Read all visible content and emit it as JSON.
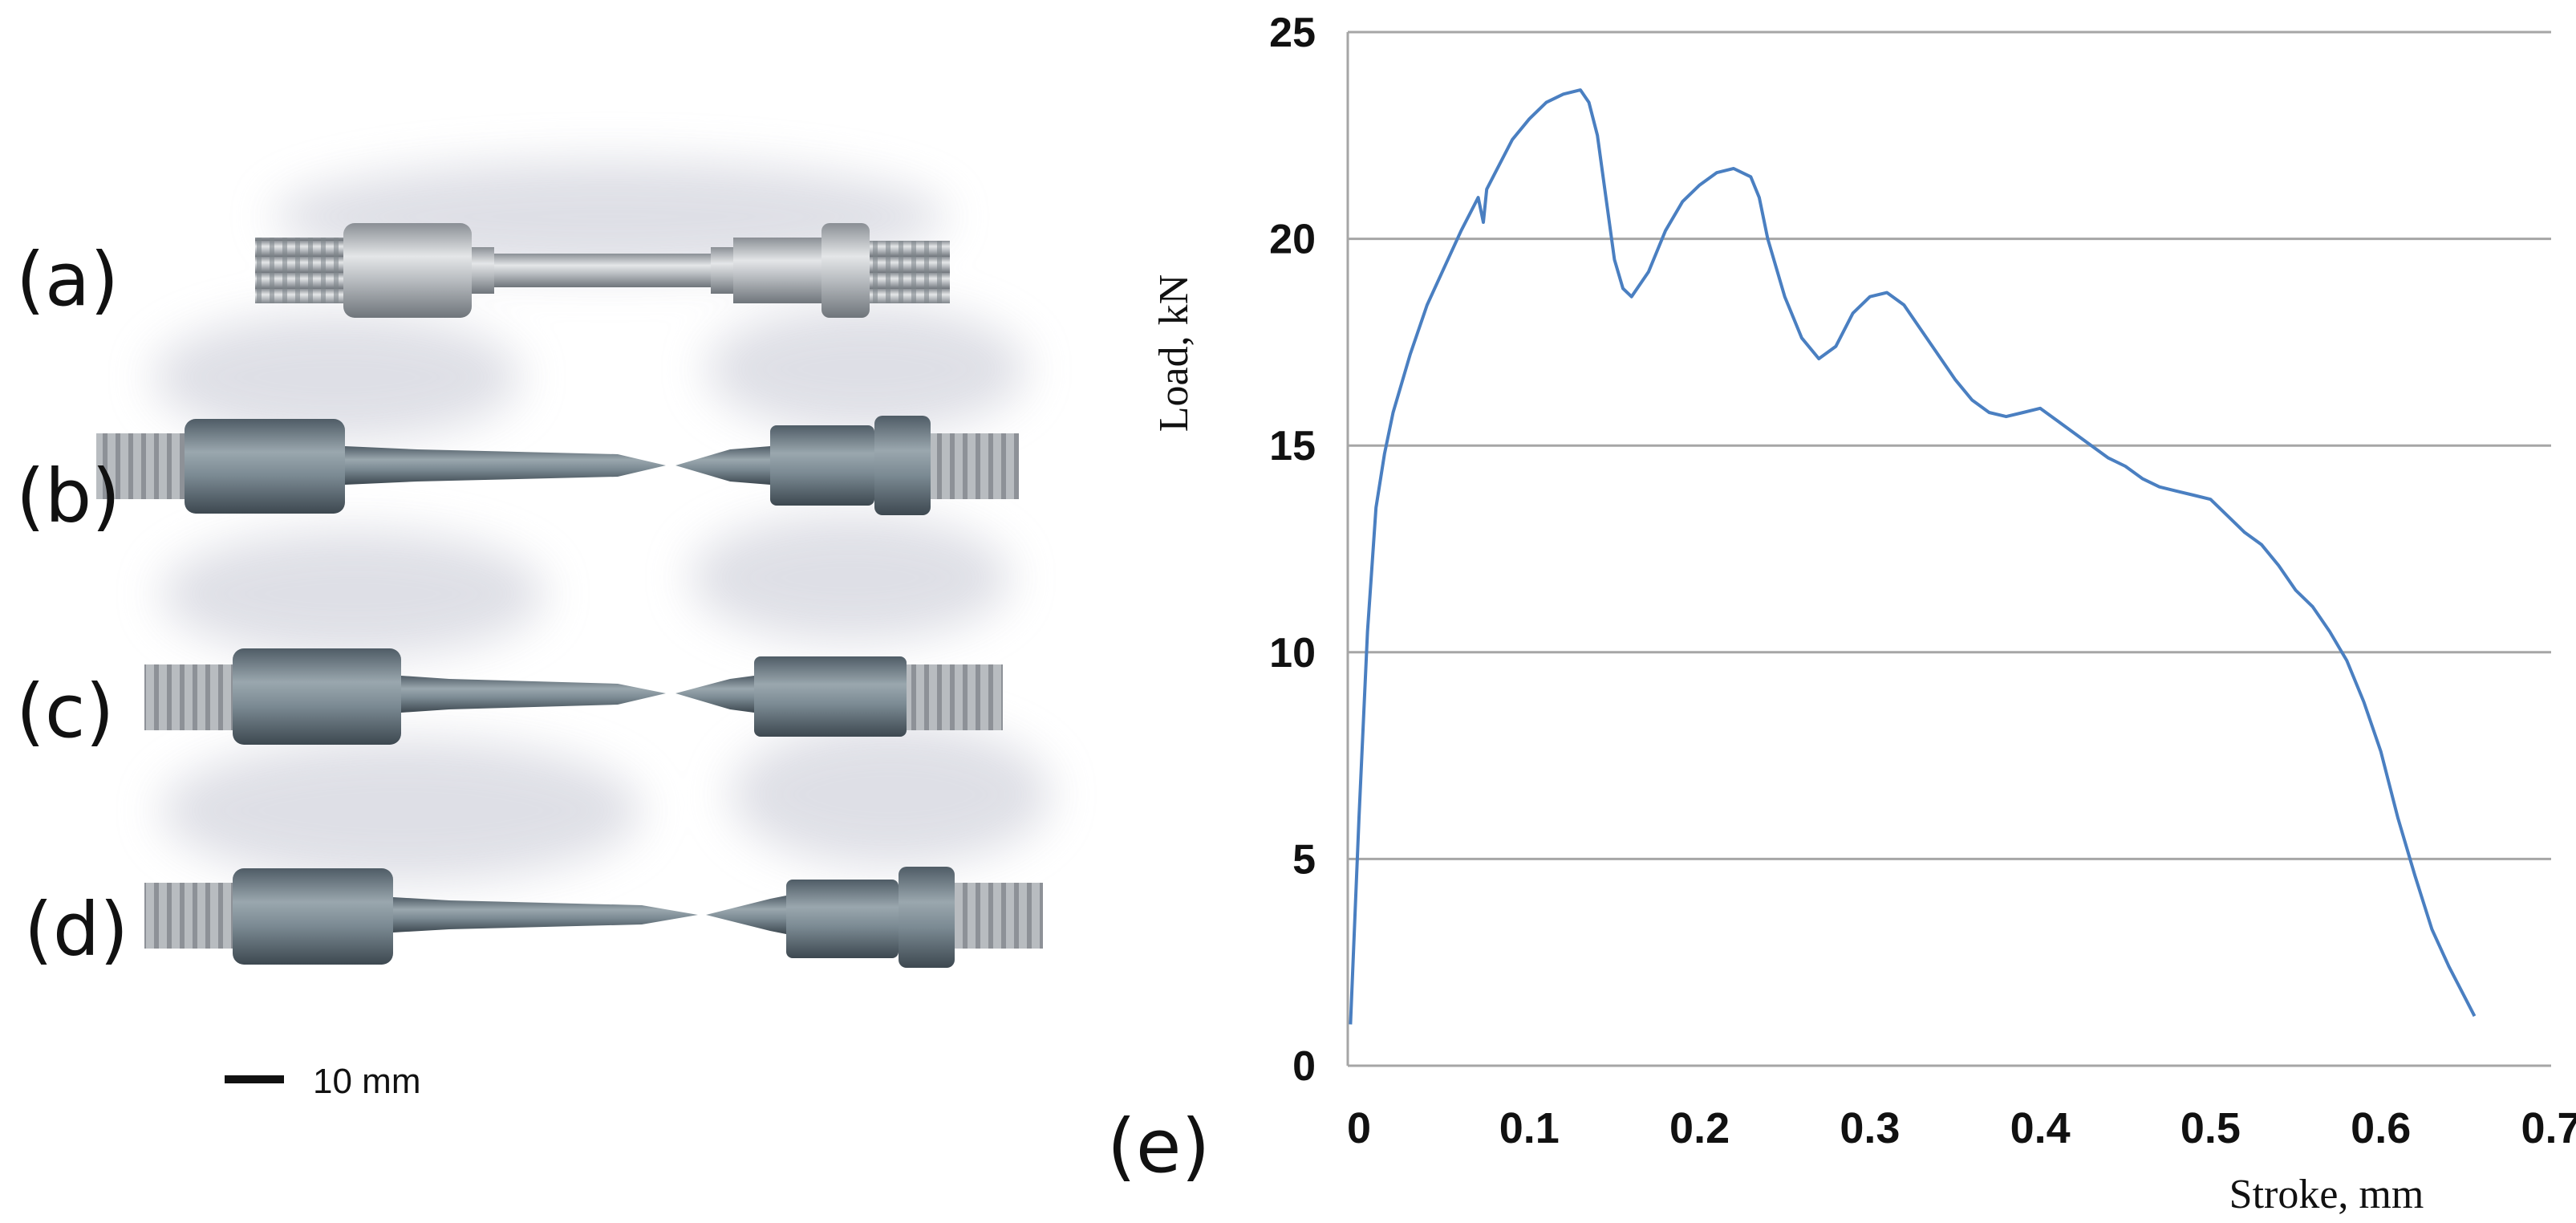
{
  "panels": {
    "a": "(a)",
    "b": "(b)",
    "c": "(c)",
    "d": "(d)",
    "e": "(e)"
  },
  "scale_bar": {
    "label": "10 mm"
  },
  "colors": {
    "series": "#4a7fc1",
    "grid": "#a6a6a6",
    "metal_unbroken": "#b4b8bc",
    "metal_tested": "#76858f",
    "shadow": "#dcdde3"
  },
  "specimens": [
    {
      "panel": "a",
      "state": "untested"
    },
    {
      "panel": "b",
      "state": "fractured"
    },
    {
      "panel": "c",
      "state": "fractured"
    },
    {
      "panel": "d",
      "state": "fractured"
    }
  ],
  "chart_data": {
    "type": "line",
    "title": "",
    "xlabel": "Stroke, mm",
    "ylabel": "Load, kN",
    "xlim": [
      0,
      0.7
    ],
    "ylim": [
      0,
      25
    ],
    "xticks": [
      0,
      0.1,
      0.2,
      0.3,
      0.4,
      0.5,
      0.6,
      0.7
    ],
    "xtick_labels": [
      "0",
      "0.1",
      "0.2",
      "0.3",
      "0.4",
      "0.5",
      "0.6",
      "0.7"
    ],
    "yticks": [
      0,
      5,
      10,
      15,
      20,
      25
    ],
    "ytick_labels": [
      "0",
      "5",
      "10",
      "15",
      "20",
      "25"
    ],
    "grid": "horizontal",
    "legend": "none",
    "series": [
      {
        "x": [
          -0.005,
          0.0,
          0.005,
          0.01,
          0.015,
          0.02,
          0.025,
          0.03,
          0.04,
          0.05,
          0.06,
          0.07,
          0.073,
          0.075,
          0.08,
          0.09,
          0.1,
          0.11,
          0.12,
          0.13,
          0.135,
          0.14,
          0.145,
          0.15,
          0.155,
          0.16,
          0.17,
          0.18,
          0.19,
          0.2,
          0.21,
          0.22,
          0.23,
          0.235,
          0.24,
          0.25,
          0.26,
          0.27,
          0.28,
          0.29,
          0.3,
          0.31,
          0.32,
          0.33,
          0.34,
          0.35,
          0.36,
          0.37,
          0.38,
          0.39,
          0.4,
          0.41,
          0.42,
          0.43,
          0.44,
          0.45,
          0.46,
          0.47,
          0.48,
          0.49,
          0.5,
          0.51,
          0.52,
          0.53,
          0.54,
          0.55,
          0.56,
          0.57,
          0.58,
          0.59,
          0.6,
          0.61,
          0.62,
          0.63,
          0.64,
          0.65,
          0.655
        ],
        "y": [
          1.0,
          6.0,
          10.5,
          13.5,
          14.8,
          15.8,
          16.5,
          17.2,
          18.4,
          19.3,
          20.2,
          21.0,
          20.4,
          21.2,
          21.6,
          22.4,
          22.9,
          23.3,
          23.5,
          23.6,
          23.3,
          22.5,
          21.0,
          19.5,
          18.8,
          18.6,
          19.2,
          20.2,
          20.9,
          21.3,
          21.6,
          21.7,
          21.5,
          21.0,
          20.0,
          18.6,
          17.6,
          17.1,
          17.4,
          18.2,
          18.6,
          18.7,
          18.4,
          17.8,
          17.2,
          16.6,
          16.1,
          15.8,
          15.7,
          15.8,
          15.9,
          15.6,
          15.3,
          15.0,
          14.7,
          14.5,
          14.2,
          14.0,
          13.9,
          13.8,
          13.7,
          13.3,
          12.9,
          12.6,
          12.1,
          11.5,
          11.1,
          10.5,
          9.8,
          8.8,
          7.6,
          6.0,
          4.6,
          3.3,
          2.4,
          1.6,
          1.2
        ]
      }
    ]
  }
}
